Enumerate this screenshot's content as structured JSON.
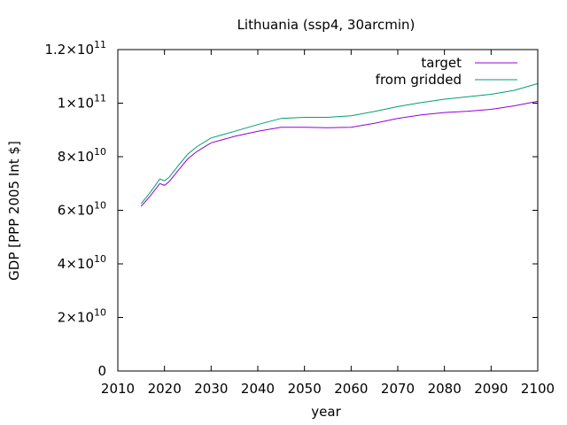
{
  "chart_data": {
    "type": "line",
    "title": "Lithuania (ssp4, 30arcmin)",
    "xlabel": "year",
    "ylabel": "GDP [PPP 2005 Int $]",
    "xlim": [
      2010,
      2100
    ],
    "ylim": [
      0,
      120000000000
    ],
    "xticks": [
      2010,
      2020,
      2030,
      2040,
      2050,
      2060,
      2070,
      2080,
      2090,
      2100
    ],
    "yticks": [
      {
        "value": 0,
        "mantissa": "0",
        "exponent": ""
      },
      {
        "value": 20000000000,
        "mantissa": "2×10",
        "exponent": "10"
      },
      {
        "value": 40000000000,
        "mantissa": "4×10",
        "exponent": "10"
      },
      {
        "value": 60000000000,
        "mantissa": "6×10",
        "exponent": "10"
      },
      {
        "value": 80000000000,
        "mantissa": "8×10",
        "exponent": "10"
      },
      {
        "value": 100000000000,
        "mantissa": "1×10",
        "exponent": "11"
      },
      {
        "value": 120000000000,
        "mantissa": "1.2×10",
        "exponent": "11"
      }
    ],
    "legend_position": "top-right",
    "grid": false,
    "series": [
      {
        "name": "target",
        "color": "#9400d3",
        "x": [
          2015,
          2017,
          2019,
          2020,
          2021,
          2023,
          2025,
          2027,
          2030,
          2035,
          2040,
          2045,
          2050,
          2055,
          2060,
          2065,
          2070,
          2075,
          2080,
          2085,
          2090,
          2095,
          2100
        ],
        "y": [
          61500000000,
          65500000000,
          70000000000,
          69300000000,
          70700000000,
          75000000000,
          79200000000,
          82000000000,
          85200000000,
          87600000000,
          89500000000,
          91000000000,
          91000000000,
          90800000000,
          91000000000,
          92500000000,
          94300000000,
          95600000000,
          96500000000,
          97000000000,
          97700000000,
          99000000000,
          100700000000
        ]
      },
      {
        "name": "from gridded",
        "color": "#009e73",
        "x": [
          2015,
          2017,
          2019,
          2020,
          2021,
          2023,
          2025,
          2027,
          2030,
          2035,
          2040,
          2045,
          2050,
          2055,
          2060,
          2065,
          2070,
          2075,
          2080,
          2085,
          2090,
          2095,
          2100
        ],
        "y": [
          62500000000,
          66800000000,
          71700000000,
          71000000000,
          72300000000,
          76800000000,
          81000000000,
          83800000000,
          87000000000,
          89500000000,
          92000000000,
          94300000000,
          94700000000,
          94700000000,
          95300000000,
          96900000000,
          98700000000,
          100200000000,
          101500000000,
          102400000000,
          103300000000,
          104800000000,
          107300000000
        ]
      }
    ]
  }
}
